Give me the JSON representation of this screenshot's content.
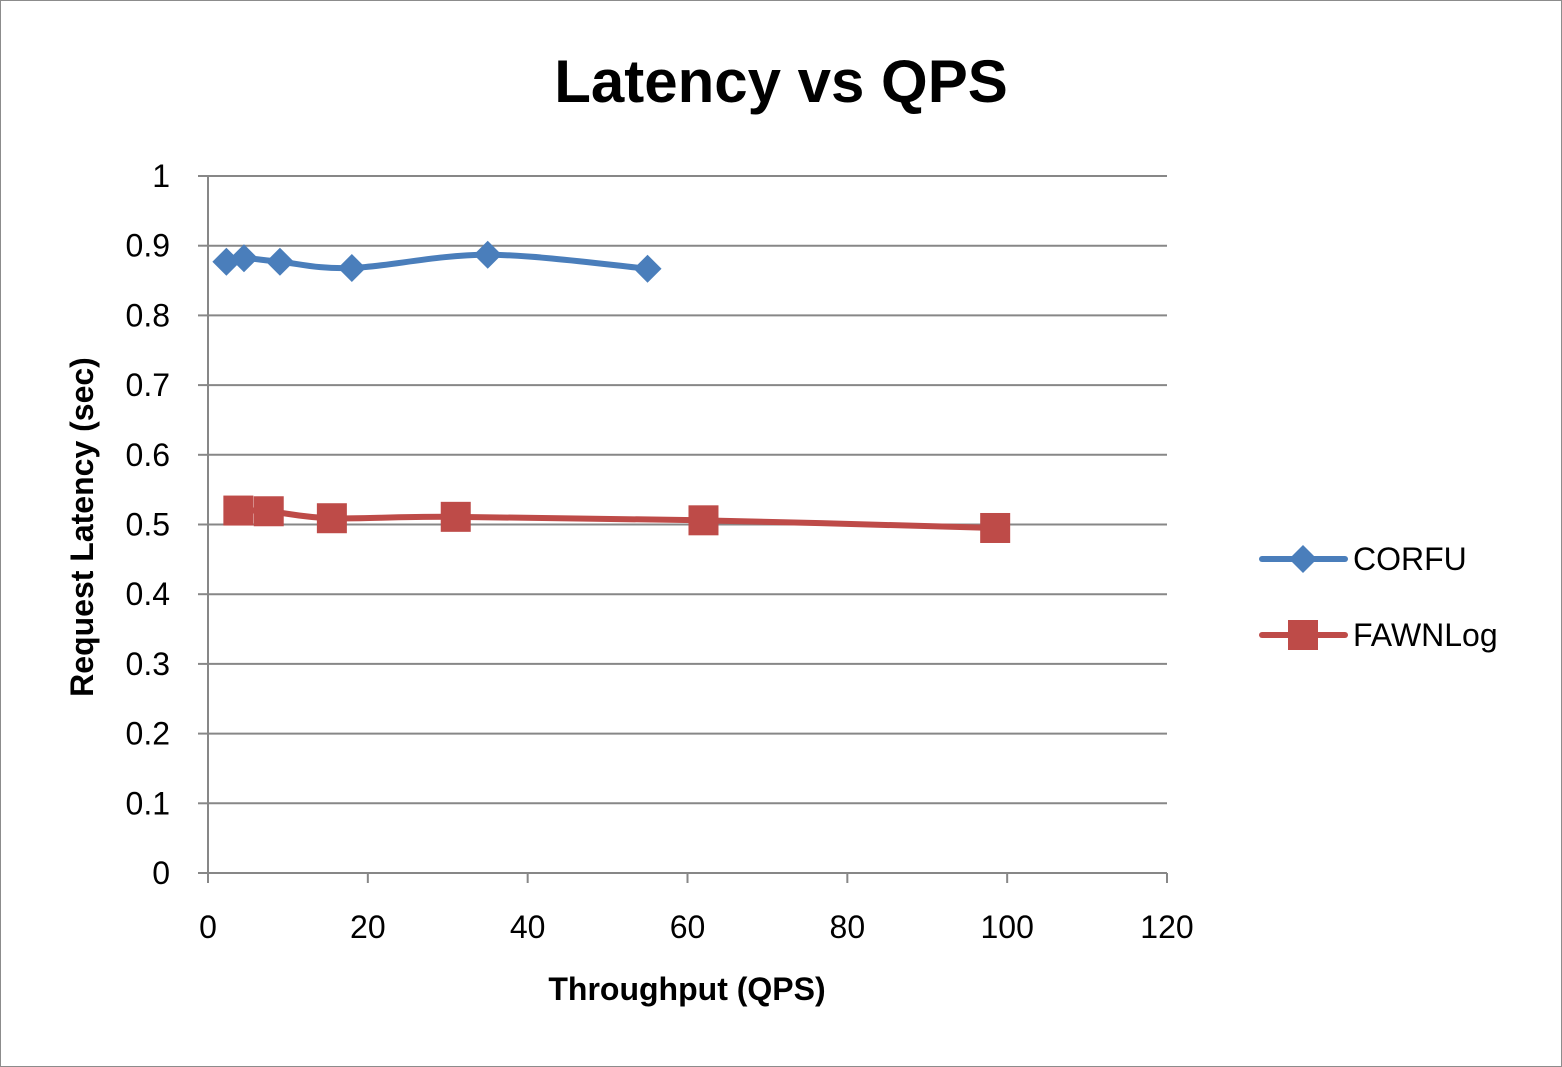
{
  "chart_data": {
    "type": "scatter",
    "title": "Latency vs QPS",
    "xlabel": "Throughput (QPS)",
    "ylabel": "Request Latency (sec)",
    "xlim": [
      0,
      120
    ],
    "ylim": [
      0,
      1
    ],
    "x_ticks": [
      "0",
      "20",
      "40",
      "60",
      "80",
      "100",
      "120"
    ],
    "y_ticks": [
      "0",
      "0.1",
      "0.2",
      "0.3",
      "0.4",
      "0.5",
      "0.6",
      "0.7",
      "0.8",
      "0.9",
      "1"
    ],
    "grid": "horizontal",
    "legend_position": "right",
    "series": [
      {
        "name": "CORFU",
        "color": "#4a7ebb",
        "marker": "diamond",
        "smooth": true,
        "points": [
          [
            2.3,
            0.877
          ],
          [
            4.5,
            0.882
          ],
          [
            9,
            0.877
          ],
          [
            18,
            0.868
          ],
          [
            35,
            0.887
          ],
          [
            55,
            0.867
          ]
        ]
      },
      {
        "name": "FAWNLog",
        "color": "#be4b48",
        "marker": "square",
        "smooth": true,
        "points": [
          [
            3.8,
            0.52
          ],
          [
            7.6,
            0.519
          ],
          [
            15.5,
            0.509
          ],
          [
            31,
            0.511
          ],
          [
            62,
            0.506
          ],
          [
            98.5,
            0.495
          ]
        ]
      }
    ]
  }
}
